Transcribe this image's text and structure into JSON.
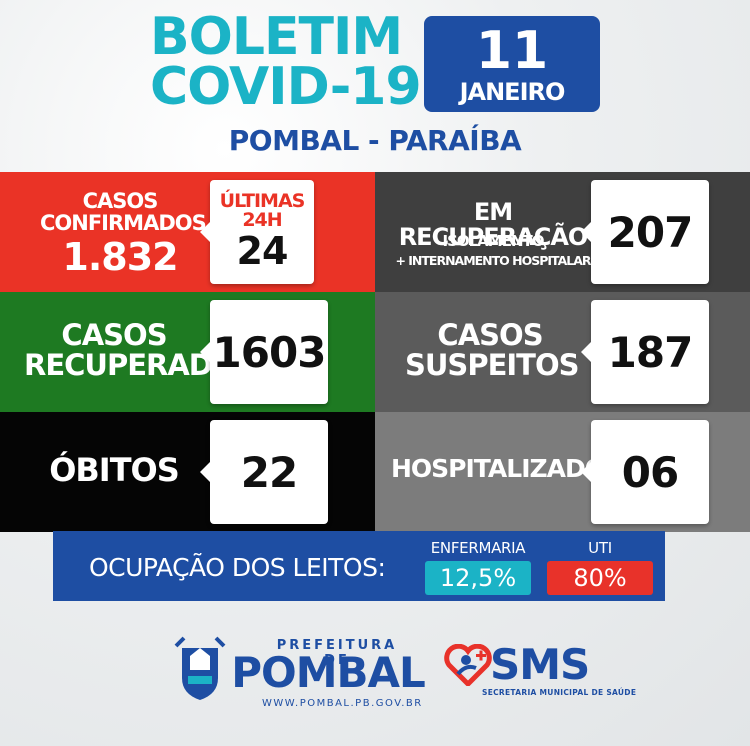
{
  "header": {
    "title_line1": "BOLETIM",
    "title_line2": "COVID-19",
    "date_day": "11",
    "date_month": "JANEIRO",
    "location": "POMBAL - PARAÍBA"
  },
  "panels": {
    "confirmed": {
      "label_line1": "CASOS",
      "label_line2": "CONFIRMADOS",
      "total": "1.832",
      "last_label_line1": "ÚLTIMAS",
      "last_label_line2": "24H",
      "last_value": "24"
    },
    "recovery": {
      "label": "EM RECUPERAÇÃO",
      "sub1": "ISOLAMENTO",
      "sub2": "+ INTERNAMENTO HOSPITALAR",
      "value": "207"
    },
    "recovered": {
      "label_line1": "CASOS",
      "label_line2": "RECUPERADOS",
      "value": "1603"
    },
    "suspects": {
      "label_line1": "CASOS",
      "label_line2": "SUSPEITOS",
      "value": "187"
    },
    "deaths": {
      "label": "ÓBITOS",
      "value": "22"
    },
    "hospitalized": {
      "label": "HOSPITALIZADOS",
      "value": "06"
    }
  },
  "occupancy": {
    "label": "OCUPAÇÃO DOS LEITOS:",
    "ward_label": "ENFERMARIA",
    "ward_value": "12,5%",
    "icu_label": "UTI",
    "icu_value": "80%"
  },
  "footer": {
    "prefeitura_small": "PREFEITURA DE",
    "prefeitura_name": "POMBAL",
    "prefeitura_url": "WWW.POMBAL.PB.GOV.BR",
    "sms_name": "SMS",
    "sms_sub": "SECRETARIA MUNICIPAL DE SAÚDE"
  },
  "colors": {
    "title_cyan": "#1bb3c6",
    "brand_blue": "#1e4ea3",
    "confirmed_red": "#ea3326",
    "recovered_green": "#1e7a22",
    "ward_cyan": "#1bb3c6",
    "icu_red": "#e8322a"
  }
}
